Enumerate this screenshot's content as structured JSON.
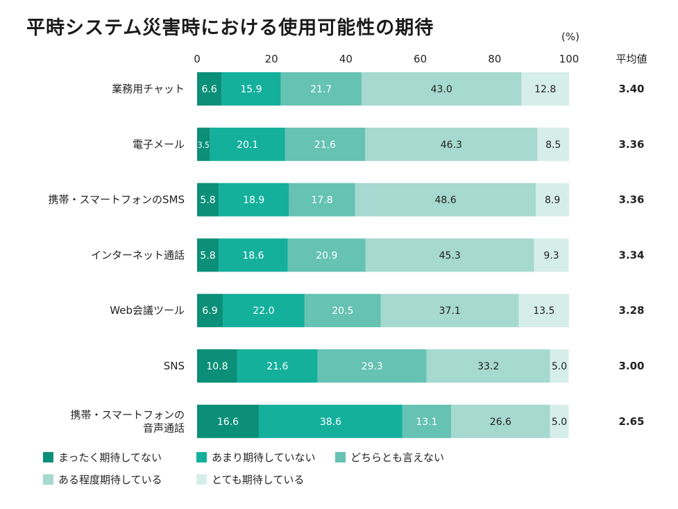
{
  "title": "平時システム災害時における使用可能性の期待",
  "unit_label": "(%)",
  "avg_header": "平均値",
  "chart_data": {
    "type": "bar",
    "orientation": "horizontal",
    "stacked": true,
    "xlim": [
      0,
      100
    ],
    "x_ticks": [
      "0",
      "20",
      "40",
      "60",
      "80",
      "100"
    ],
    "categories": [
      [
        "業務用チャット"
      ],
      [
        "電子メール"
      ],
      [
        "携帯・スマートフォンのSMS"
      ],
      [
        "インターネット通話"
      ],
      [
        "Web会議ツール"
      ],
      [
        "SNS"
      ],
      [
        "携帯・スマートフォンの",
        "音声通話"
      ]
    ],
    "series": [
      {
        "name": "まったく期待してない",
        "color": "#0b8f78",
        "text_color": "#ffffff",
        "values": [
          6.6,
          3.5,
          5.8,
          5.8,
          6.9,
          10.8,
          16.6
        ],
        "labels": [
          "6.6",
          "3.5",
          "5.8",
          "5.8",
          "6.9",
          "10.8",
          "16.6"
        ]
      },
      {
        "name": "あまり期待していない",
        "color": "#14b09c",
        "text_color": "#ffffff",
        "values": [
          15.9,
          20.1,
          18.9,
          18.6,
          22.0,
          21.6,
          38.6
        ],
        "labels": [
          "15.9",
          "20.1",
          "18.9",
          "18.6",
          "22.0",
          "21.6",
          "38.6"
        ]
      },
      {
        "name": "どちらとも言えない",
        "color": "#66c2b3",
        "text_color": "#ffffff",
        "values": [
          21.7,
          21.6,
          17.8,
          20.9,
          20.5,
          29.3,
          13.1
        ],
        "labels": [
          "21.7",
          "21.6",
          "17.8",
          "20.9",
          "20.5",
          "29.3",
          "13.1"
        ]
      },
      {
        "name": "ある程度期待している",
        "color": "#a6d9cf",
        "text_color": "#222222",
        "values": [
          43.0,
          46.3,
          48.6,
          45.3,
          37.1,
          33.2,
          26.6
        ],
        "labels": [
          "43.0",
          "46.3",
          "48.6",
          "45.3",
          "37.1",
          "33.2",
          "26.6"
        ]
      },
      {
        "name": "とても期待している",
        "color": "#d6eee9",
        "text_color": "#222222",
        "values": [
          12.8,
          8.5,
          8.9,
          9.3,
          13.5,
          5.0,
          5.0
        ],
        "labels": [
          "12.8",
          "8.5",
          "8.9",
          "9.3",
          "13.5",
          "5.0",
          "5.0"
        ]
      }
    ],
    "averages": [
      "3.40",
      "3.36",
      "3.36",
      "3.34",
      "3.28",
      "3.00",
      "2.65"
    ],
    "grid": false,
    "legend_position": "bottom-left"
  }
}
